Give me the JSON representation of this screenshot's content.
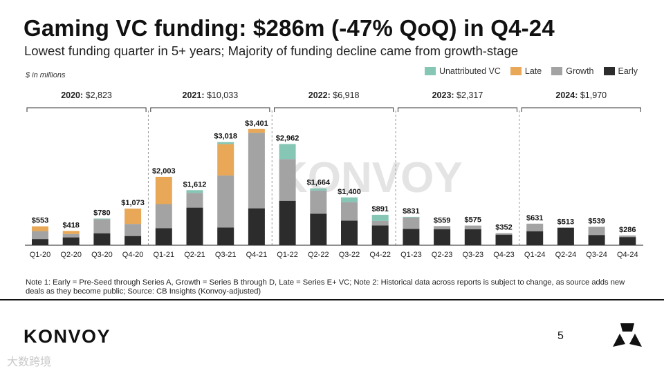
{
  "title": "Gaming VC funding: $286m (-47% QoQ) in Q4-24",
  "subtitle": "Lowest funding quarter in 5+ years; Majority of funding decline came from growth-stage",
  "units_label": "$ in millions",
  "legend": [
    {
      "name": "Unattributed VC",
      "color": "#86c6b5"
    },
    {
      "name": "Late",
      "color": "#e8a857"
    },
    {
      "name": "Growth",
      "color": "#a3a3a3"
    },
    {
      "name": "Early",
      "color": "#2c2c2c"
    }
  ],
  "watermark": "KONVOY",
  "note": "Note 1: Early = Pre-Seed through Series A, Growth = Series B through D, Late = Series E+ VC; Note 2: Historical data across reports is subject to change, as source adds new deals as they become public; Source: CB Insights (Konvoy-adjusted)",
  "logo_text": "KONVOY",
  "page_number": "5",
  "corner_watermark": "大数跨境",
  "chart_data": {
    "type": "bar",
    "stacked": true,
    "ylim": [
      0,
      3700
    ],
    "grid": false,
    "categories": [
      "Q1-20",
      "Q2-20",
      "Q3-20",
      "Q4-20",
      "Q1-21",
      "Q2-21",
      "Q3-21",
      "Q4-21",
      "Q1-22",
      "Q2-22",
      "Q3-22",
      "Q4-22",
      "Q1-23",
      "Q2-23",
      "Q3-23",
      "Q4-23",
      "Q1-24",
      "Q2-24",
      "Q3-24",
      "Q4-24"
    ],
    "totals_labels": [
      "$553",
      "$418",
      "$780",
      "$1,073",
      "$2,003",
      "$1,612",
      "$3,018",
      "$3,401",
      "$2,962",
      "$1,664",
      "$1,400",
      "$891",
      "$831",
      "$559",
      "$575",
      "$352",
      "$631",
      "$513",
      "$539",
      "$286"
    ],
    "series": [
      {
        "name": "Early",
        "color": "#2c2c2c",
        "values": [
          180,
          230,
          350,
          270,
          500,
          1100,
          520,
          1080,
          1300,
          920,
          720,
          580,
          480,
          470,
          470,
          310,
          410,
          513,
          300,
          240
        ]
      },
      {
        "name": "Growth",
        "color": "#a3a3a3",
        "values": [
          233,
          98,
          410,
          353,
          703,
          430,
          1520,
          2211,
          1220,
          680,
          540,
          130,
          331,
          89,
          105,
          42,
          221,
          0,
          239,
          46
        ]
      },
      {
        "name": "Late",
        "color": "#e8a857",
        "values": [
          140,
          90,
          0,
          450,
          800,
          0,
          918,
          110,
          0,
          0,
          0,
          0,
          0,
          0,
          0,
          0,
          0,
          0,
          0,
          0
        ]
      },
      {
        "name": "Unattributed VC",
        "color": "#86c6b5",
        "values": [
          0,
          0,
          20,
          0,
          0,
          82,
          60,
          0,
          442,
          64,
          140,
          181,
          20,
          0,
          0,
          0,
          0,
          0,
          0,
          0
        ]
      }
    ],
    "groups": [
      {
        "year": "2020:",
        "total": "$2,823",
        "start": 0,
        "end": 3
      },
      {
        "year": "2021:",
        "total": "$10,033",
        "start": 4,
        "end": 7
      },
      {
        "year": "2022:",
        "total": "$6,918",
        "start": 8,
        "end": 11
      },
      {
        "year": "2023:",
        "total": "$2,317",
        "start": 12,
        "end": 15
      },
      {
        "year": "2024:",
        "total": "$1,970",
        "start": 16,
        "end": 19
      }
    ]
  }
}
